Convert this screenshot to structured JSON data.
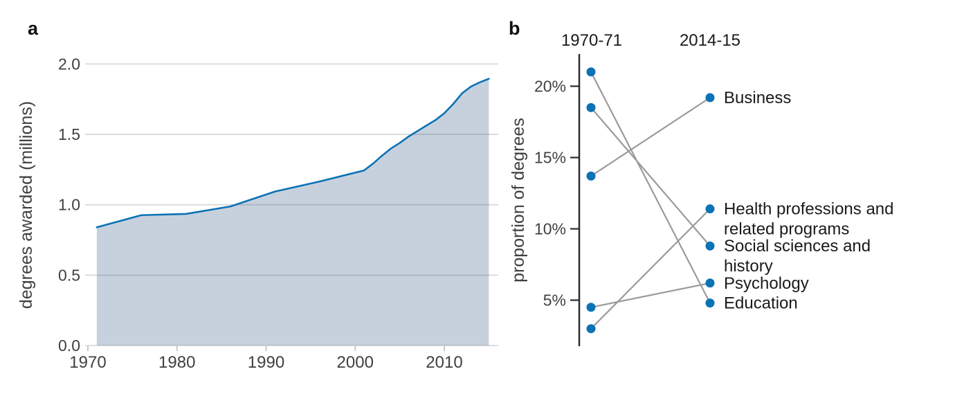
{
  "figure": {
    "panel_a_label": "a",
    "panel_b_label": "b"
  },
  "colors": {
    "accent_blue": "#0b72b5",
    "area_fill_rgba": "rgba(68,104,143,0.30)",
    "gridline": "#d9d9d9",
    "axis_text": "#404040",
    "label_text": "#1a1a1a",
    "slope_line": "#9a9a9a",
    "axis_line": "#2b2b2b",
    "minor_tick": "#c9c9c9"
  },
  "chart_data": [
    {
      "panel": "a",
      "type": "area",
      "title": "",
      "xlabel": "",
      "ylabel": "degrees awarded (millions)",
      "x": [
        1971,
        1976,
        1981,
        1986,
        1991,
        1996,
        2001,
        2002,
        2003,
        2004,
        2005,
        2006,
        2007,
        2008,
        2009,
        2010,
        2011,
        2012,
        2013,
        2014,
        2015
      ],
      "values": [
        0.84,
        0.926,
        0.935,
        0.988,
        1.094,
        1.165,
        1.244,
        1.292,
        1.348,
        1.399,
        1.439,
        1.485,
        1.524,
        1.563,
        1.601,
        1.65,
        1.716,
        1.792,
        1.84,
        1.87,
        1.895
      ],
      "xlim": [
        1970,
        2016
      ],
      "ylim": [
        0,
        2.0
      ],
      "xticks": [
        1970,
        1980,
        1990,
        2000,
        2010
      ],
      "yticks": [
        {
          "v": 0.0,
          "label": "0.0"
        },
        {
          "v": 0.5,
          "label": "0.5"
        },
        {
          "v": 1.0,
          "label": "1.0"
        },
        {
          "v": 1.5,
          "label": "1.5"
        },
        {
          "v": 2.0,
          "label": "2.0"
        }
      ],
      "grid": "horizontal",
      "legend": "none"
    },
    {
      "panel": "b",
      "type": "line",
      "subtype": "slopegraph",
      "title": "",
      "xlabel": "",
      "ylabel": "proportion of degrees",
      "unit": "%",
      "categories": [
        "1970-71",
        "2014-15"
      ],
      "yticks": [
        {
          "v": 20,
          "label": "20%"
        },
        {
          "v": 15,
          "label": "15%"
        },
        {
          "v": 10,
          "label": "10%"
        },
        {
          "v": 5,
          "label": "5%"
        }
      ],
      "ylim": [
        2.5,
        22
      ],
      "grid": "off",
      "legend": "right-labels",
      "series": [
        {
          "name": "Business",
          "values": [
            13.7,
            19.2
          ],
          "label_lines": [
            "Business"
          ]
        },
        {
          "name": "Health professions and related programs",
          "values": [
            3.0,
            11.4
          ],
          "label_lines": [
            "Health professions and",
            "related programs"
          ]
        },
        {
          "name": "Social sciences and history",
          "values": [
            18.5,
            8.8
          ],
          "label_lines": [
            "Social sciences and",
            "history"
          ]
        },
        {
          "name": "Psychology",
          "values": [
            4.5,
            6.2
          ],
          "label_lines": [
            "Psychology"
          ]
        },
        {
          "name": "Education",
          "values": [
            21.0,
            4.8
          ],
          "label_lines": [
            "Education"
          ]
        }
      ]
    }
  ]
}
